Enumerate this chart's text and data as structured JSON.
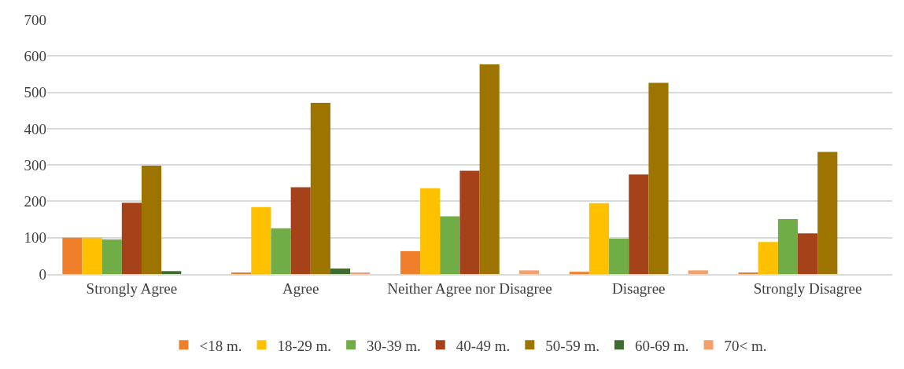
{
  "chart_data": {
    "type": "bar",
    "categories": [
      "Strongly Agree",
      "Agree",
      "Neither Agree nor Disagree",
      "Disagree",
      "Strongly Disagree"
    ],
    "series": [
      {
        "name": "<18 m.",
        "color": "#f07f2c",
        "values": [
          100,
          3,
          63,
          6,
          3
        ]
      },
      {
        "name": "18-29 m.",
        "color": "#ffc000",
        "values": [
          100,
          184,
          236,
          195,
          88
        ]
      },
      {
        "name": "30-39 m.",
        "color": "#70ad47",
        "values": [
          95,
          126,
          159,
          97,
          151
        ]
      },
      {
        "name": "40-49 m.",
        "color": "#a5421a",
        "values": [
          196,
          239,
          284,
          274,
          112
        ]
      },
      {
        "name": "50-59 m.",
        "color": "#9e7400",
        "values": [
          298,
          471,
          577,
          526,
          336
        ]
      },
      {
        "name": "60-69 m.",
        "color": "#3f6b30",
        "values": [
          8,
          15,
          0,
          0,
          0
        ]
      },
      {
        "name": "70< m.",
        "color": "#f4a06a",
        "values": [
          0,
          3,
          10,
          10,
          0
        ]
      }
    ],
    "ylim": [
      0,
      700
    ],
    "yticks": [
      0,
      100,
      200,
      300,
      400,
      500,
      600,
      700
    ],
    "grid": "y",
    "legend": "bottom"
  }
}
